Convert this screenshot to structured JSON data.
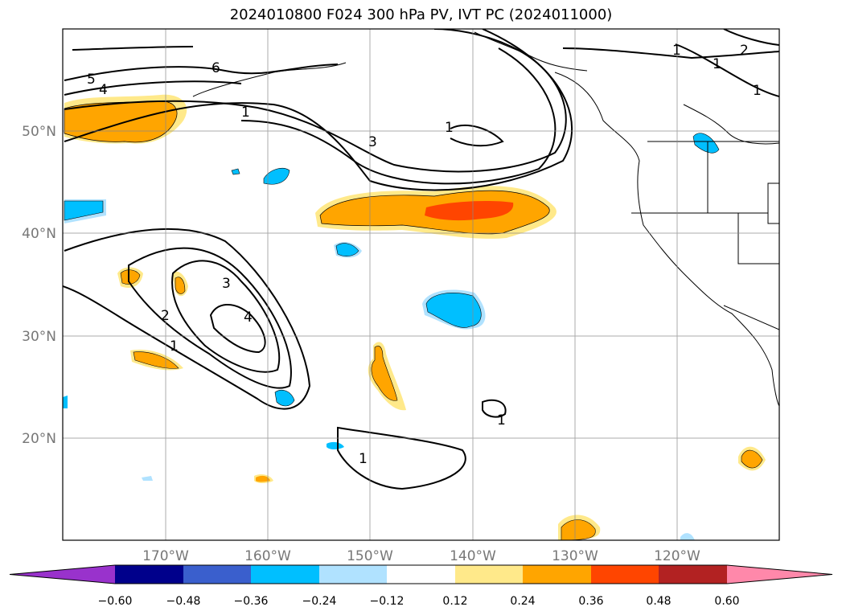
{
  "title": "2024010800 F024 300 hPa PV, IVT PC (2024011000)",
  "map": {
    "lat_labels": [
      "50°N",
      "40°N",
      "30°N",
      "20°N"
    ],
    "lon_labels": [
      "170°W",
      "160°W",
      "150°W",
      "140°W",
      "130°W",
      "120°W"
    ],
    "contour_labels": [
      "5",
      "4",
      "6",
      "1",
      "3",
      "1",
      "1",
      "1",
      "2",
      "1",
      "3",
      "2",
      "1",
      "4",
      "1",
      "1"
    ]
  },
  "colorbar": {
    "tick_labels": [
      "−0.60",
      "−0.48",
      "−0.36",
      "−0.24",
      "−0.12",
      "0.12",
      "0.24",
      "0.36",
      "0.48",
      "0.60"
    ],
    "colors": [
      "#9932cc",
      "#00008b",
      "#3a5fcd",
      "#00bfff",
      "#b0e2ff",
      "#ffffff",
      "#ffe98a",
      "#ffa500",
      "#ff4500",
      "#b22222",
      "#ff88aa"
    ]
  }
}
